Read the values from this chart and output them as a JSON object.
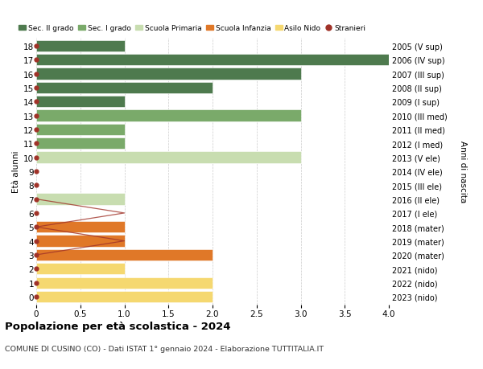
{
  "ages": [
    18,
    17,
    16,
    15,
    14,
    13,
    12,
    11,
    10,
    9,
    8,
    7,
    6,
    5,
    4,
    3,
    2,
    1,
    0
  ],
  "right_labels": [
    "2005 (V sup)",
    "2006 (IV sup)",
    "2007 (III sup)",
    "2008 (II sup)",
    "2009 (I sup)",
    "2010 (III med)",
    "2011 (II med)",
    "2012 (I med)",
    "2013 (V ele)",
    "2014 (IV ele)",
    "2015 (III ele)",
    "2016 (II ele)",
    "2017 (I ele)",
    "2018 (mater)",
    "2019 (mater)",
    "2020 (mater)",
    "2021 (nido)",
    "2022 (nido)",
    "2023 (nido)"
  ],
  "bar_values": [
    1,
    4,
    3,
    2,
    1,
    3,
    1,
    1,
    3,
    0,
    0,
    1,
    0,
    1,
    1,
    2,
    1,
    2,
    2
  ],
  "bar_colors": [
    "#4e7a4e",
    "#4e7a4e",
    "#4e7a4e",
    "#4e7a4e",
    "#4e7a4e",
    "#7aaa6a",
    "#7aaa6a",
    "#7aaa6a",
    "#c8ddb0",
    "#c8ddb0",
    "#c8ddb0",
    "#c8ddb0",
    "#c8ddb0",
    "#e07828",
    "#e07828",
    "#e07828",
    "#f5d870",
    "#f5d870",
    "#f5d870"
  ],
  "stranieri_values": [
    0,
    0,
    0,
    0,
    0,
    0,
    0,
    0,
    0,
    0,
    0,
    0,
    1,
    0,
    1,
    0,
    0,
    0,
    0
  ],
  "stranieri_line_ages": [
    7,
    6,
    5,
    4,
    3
  ],
  "stranieri_line_vals": [
    0,
    1,
    0,
    1,
    0
  ],
  "stranieri_color": "#a03228",
  "legend_labels": [
    "Sec. II grado",
    "Sec. I grado",
    "Scuola Primaria",
    "Scuola Infanzia",
    "Asilo Nido",
    "Stranieri"
  ],
  "legend_colors": [
    "#4e7a4e",
    "#7aaa6a",
    "#c8ddb0",
    "#e07828",
    "#f5d870",
    "#a03228"
  ],
  "ylabel": "Età alunni",
  "ylabel2": "Anni di nascita",
  "title": "Popolazione per età scolastica - 2024",
  "subtitle": "COMUNE DI CUSINO (CO) - Dati ISTAT 1° gennaio 2024 - Elaborazione TUTTITALIA.IT",
  "xlim": [
    0,
    4.0
  ],
  "xticks": [
    0,
    0.5,
    1.0,
    1.5,
    2.0,
    2.5,
    3.0,
    3.5,
    4.0
  ],
  "bar_height": 0.82
}
